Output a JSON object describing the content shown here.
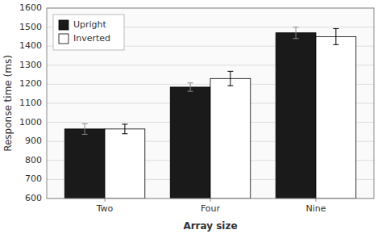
{
  "chart_data": {
    "type": "bar",
    "categories": [
      "Two",
      "Four",
      "Nine"
    ],
    "xlabel": "Array size",
    "ylabel": "Response time (ms)",
    "series": [
      {
        "name": "Upright",
        "color": "#1a1a1a",
        "values": [
          965,
          1185,
          1470
        ],
        "errors": [
          28,
          22,
          30
        ]
      },
      {
        "name": "Inverted",
        "color": "#ffffff",
        "values": [
          965,
          1230,
          1450
        ],
        "errors": [
          25,
          38,
          42
        ]
      }
    ],
    "ylim": [
      600,
      1600
    ],
    "yticks": [
      600,
      700,
      800,
      900,
      1000,
      1100,
      1200,
      1300,
      1400,
      1500,
      1600
    ],
    "grid": true,
    "legend": "upper left"
  }
}
